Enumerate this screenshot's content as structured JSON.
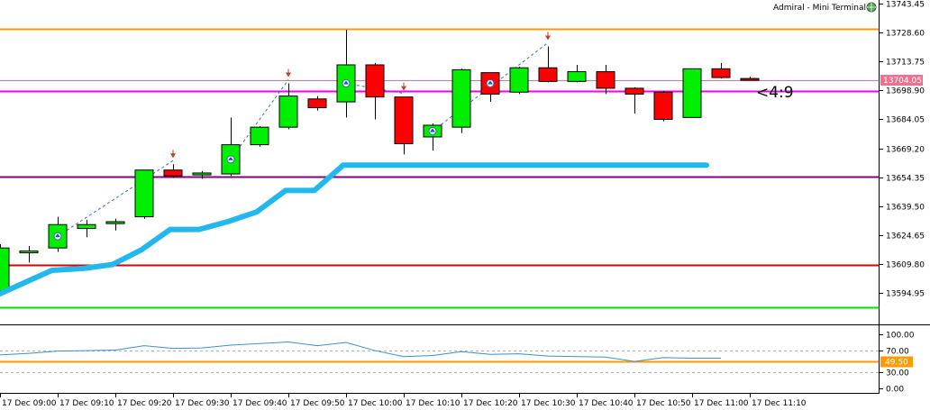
{
  "header": {
    "terminal_label": "Admiral - Mini Terminal",
    "timer": "<4:9"
  },
  "colors": {
    "bull": "#00ee00",
    "bear": "#ff0000",
    "indicator": "#22b8ee",
    "level_orange": "#ff9900",
    "level_magenta": "#ee00ee",
    "level_purple": "#800080",
    "level_red": "#dd0000",
    "level_green": "#00dd00",
    "bid_line": "#f07090",
    "oscillator": "#3a8fd0"
  },
  "chart_data": {
    "type": "candlestick",
    "price_axis": {
      "range": [
        13585.35,
        13743.45
      ],
      "ticks": [
        13743.45,
        13728.6,
        13713.75,
        13698.9,
        13684.05,
        13669.2,
        13654.35,
        13639.5,
        13624.65,
        13609.8,
        13594.95
      ],
      "tick_labels": [
        "13743.45",
        "13728.60",
        "13713.75",
        "13698.90",
        "13684.05",
        "13669.20",
        "13654.35",
        "13639.50",
        "13624.65",
        "13609.80",
        "13594.95"
      ],
      "current_price": 13704.05,
      "current_price_label": "13704.05"
    },
    "time_axis": {
      "labels": [
        "17 Dec 09:00",
        "17 Dec 09:10",
        "17 Dec 09:20",
        "17 Dec 09:30",
        "17 Dec 09:40",
        "17 Dec 09:50",
        "17 Dec 10:00",
        "17 Dec 10:10",
        "17 Dec 10:20",
        "17 Dec 10:30",
        "17 Dec 10:40",
        "17 Dec 10:50",
        "17 Dec 11:00",
        "17 Dec 11:10"
      ],
      "label_candle_index": [
        0,
        2,
        4,
        6,
        8,
        10,
        12,
        14,
        16,
        18,
        20,
        22,
        24,
        26
      ]
    },
    "candles": [
      {
        "o": 13596.0,
        "h": 13620.0,
        "l": 13594.0,
        "c": 13618.0
      },
      {
        "o": 13615.5,
        "h": 13619.0,
        "l": 13610.5,
        "c": 13616.5
      },
      {
        "o": 13618.0,
        "h": 13634.0,
        "l": 13616.0,
        "c": 13630.0
      },
      {
        "o": 13628.0,
        "h": 13632.5,
        "l": 13623.5,
        "c": 13630.0
      },
      {
        "o": 13630.5,
        "h": 13633.0,
        "l": 13627.0,
        "c": 13631.5
      },
      {
        "o": 13634.0,
        "h": 13658.0,
        "l": 13633.0,
        "c": 13658.0
      },
      {
        "o": 13658.0,
        "h": 13661.0,
        "l": 13654.0,
        "c": 13655.0
      },
      {
        "o": 13655.5,
        "h": 13657.5,
        "l": 13653.5,
        "c": 13656.5
      },
      {
        "o": 13656.0,
        "h": 13685.0,
        "l": 13655.0,
        "c": 13671.0
      },
      {
        "o": 13671.0,
        "h": 13680.5,
        "l": 13670.0,
        "c": 13680.0
      },
      {
        "o": 13680.0,
        "h": 13702.5,
        "l": 13679.0,
        "c": 13696.0
      },
      {
        "o": 13694.5,
        "h": 13696.0,
        "l": 13688.5,
        "c": 13690.0
      },
      {
        "o": 13693.0,
        "h": 13730.0,
        "l": 13685.0,
        "c": 13712.0
      },
      {
        "o": 13712.0,
        "h": 13713.0,
        "l": 13684.0,
        "c": 13695.5
      },
      {
        "o": 13695.5,
        "h": 13695.5,
        "l": 13666.0,
        "c": 13671.5
      },
      {
        "o": 13675.0,
        "h": 13682.0,
        "l": 13668.0,
        "c": 13681.0
      },
      {
        "o": 13680.0,
        "h": 13710.0,
        "l": 13677.0,
        "c": 13709.5
      },
      {
        "o": 13708.0,
        "h": 13708.0,
        "l": 13693.0,
        "c": 13697.0
      },
      {
        "o": 13698.0,
        "h": 13711.0,
        "l": 13697.0,
        "c": 13710.5
      },
      {
        "o": 13710.5,
        "h": 13721.5,
        "l": 13703.0,
        "c": 13703.5
      },
      {
        "o": 13703.5,
        "h": 13712.0,
        "l": 13703.0,
        "c": 13708.5
      },
      {
        "o": 13708.5,
        "h": 13712.0,
        "l": 13697.0,
        "c": 13700.0
      },
      {
        "o": 13700.0,
        "h": 13700.5,
        "l": 13687.0,
        "c": 13697.0
      },
      {
        "o": 13698.0,
        "h": 13698.5,
        "l": 13683.0,
        "c": 13684.0
      },
      {
        "o": 13685.0,
        "h": 13710.0,
        "l": 13685.0,
        "c": 13710.0
      },
      {
        "o": 13710.0,
        "h": 13713.0,
        "l": 13705.0,
        "c": 13705.5
      },
      {
        "o": 13705.0,
        "h": 13706.0,
        "l": 13704.0,
        "c": 13704.5
      }
    ],
    "indicator_line": [
      {
        "i": -0.3,
        "v": 13592.5
      },
      {
        "i": 1.8,
        "v": 13606.5
      },
      {
        "i": 2.9,
        "v": 13607.5
      },
      {
        "i": 3.9,
        "v": 13609.5
      },
      {
        "i": 4.9,
        "v": 13617.0
      },
      {
        "i": 5.9,
        "v": 13627.5
      },
      {
        "i": 6.9,
        "v": 13627.5
      },
      {
        "i": 7.9,
        "v": 13631.5
      },
      {
        "i": 8.9,
        "v": 13636.5
      },
      {
        "i": 9.9,
        "v": 13647.5
      },
      {
        "i": 10.9,
        "v": 13647.5
      },
      {
        "i": 11.9,
        "v": 13660.5
      },
      {
        "i": 24.5,
        "v": 13660.5
      }
    ],
    "horizontal_levels": [
      {
        "price": 13730.5,
        "color": "level_orange"
      },
      {
        "price": 13698.5,
        "color": "level_magenta"
      },
      {
        "price": 13654.5,
        "color": "level_purple"
      },
      {
        "price": 13609.5,
        "color": "level_red"
      },
      {
        "price": 13587.5,
        "color": "level_green"
      }
    ],
    "buy_markers": [
      2,
      8,
      12,
      15,
      17
    ],
    "sell_markers": [
      6,
      10,
      14,
      19
    ],
    "trade_links": [
      [
        2,
        6
      ],
      [
        8,
        10
      ],
      [
        12,
        14
      ],
      [
        15,
        19
      ]
    ],
    "oscillator": {
      "range": [
        -8,
        115
      ],
      "ticks": [
        100.0,
        70.0,
        30.0,
        0.0
      ],
      "tick_labels": [
        "100.00",
        "70.00",
        "30.00",
        "0.00"
      ],
      "dashed_levels": [
        70,
        30
      ],
      "level_line": 49.5,
      "level_label": "49.50",
      "values": [
        62,
        65,
        69,
        70,
        71,
        79,
        74,
        75,
        80,
        83,
        86,
        79,
        85,
        70,
        59,
        61,
        68,
        63,
        64,
        60,
        59,
        58,
        50,
        57,
        56,
        56
      ]
    }
  }
}
